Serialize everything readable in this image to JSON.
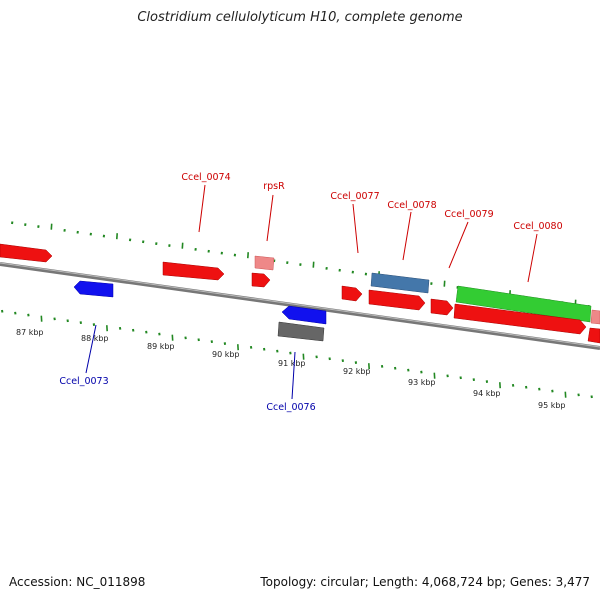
{
  "title": "Clostridium cellulolyticum H10, complete genome",
  "footer": {
    "accession": "Accession: NC_011898",
    "summary": "Topology: circular; Length: 4,068,724 bp; Genes: 3,477"
  },
  "scale_labels": [
    "87 kbp",
    "88 kbp",
    "89 kbp",
    "90 kbp",
    "91 kbp",
    "92 kbp",
    "93 kbp",
    "94 kbp",
    "95 kbp"
  ],
  "colors": {
    "red_gene": "#ee1111",
    "pink_gene": "#ee8888",
    "blue_gene": "#1111ee",
    "steel_gene": "#4477aa",
    "green_gene": "#33cc33",
    "gray_gene": "#666666",
    "tick": "#228822",
    "red_label": "#cc0000",
    "blue_label": "#0000aa"
  },
  "gene_labels": {
    "top": [
      "Ccel_0074",
      "rpsR",
      "Ccel_0077",
      "Ccel_0078",
      "Ccel_0079",
      "Ccel_0080"
    ],
    "bottom": [
      "Ccel_0073",
      "Ccel_0076"
    ]
  }
}
